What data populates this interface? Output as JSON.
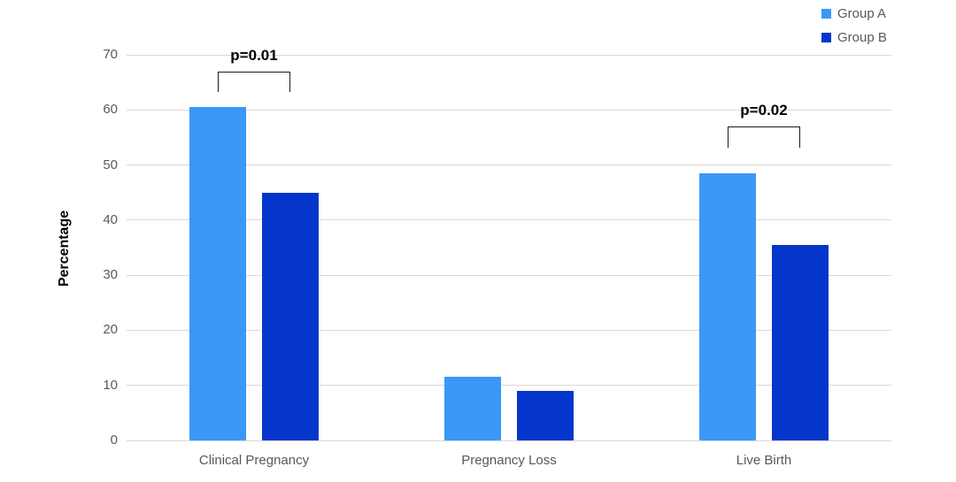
{
  "chart_data": {
    "type": "bar",
    "title": "",
    "categories": [
      "Clinical Pregnancy",
      "Pregnancy Loss",
      "Live Birth"
    ],
    "series": [
      {
        "name": "Group A",
        "color": "#3a98f6",
        "values": [
          60.5,
          11.5,
          48.5
        ]
      },
      {
        "name": "Group B",
        "color": "#0536cb",
        "values": [
          45,
          9,
          35.5
        ]
      }
    ],
    "xlabel": "",
    "ylabel": "Percentage",
    "ylim": [
      0,
      70
    ],
    "yticks": [
      0,
      10,
      20,
      30,
      40,
      50,
      60,
      70
    ],
    "grid": true,
    "grid_color": "#d9d9d9",
    "tick_label_color": "#595959",
    "legend_position": "top-right",
    "annotations": [
      {
        "label": "p=0.01",
        "category_index": 0,
        "bracket_top_value": 67.0,
        "bracket_leg_bottom_value": 63.3
      },
      {
        "label": "p=0.02",
        "category_index": 2,
        "bracket_top_value": 57.0,
        "bracket_leg_bottom_value": 53.2
      }
    ]
  }
}
